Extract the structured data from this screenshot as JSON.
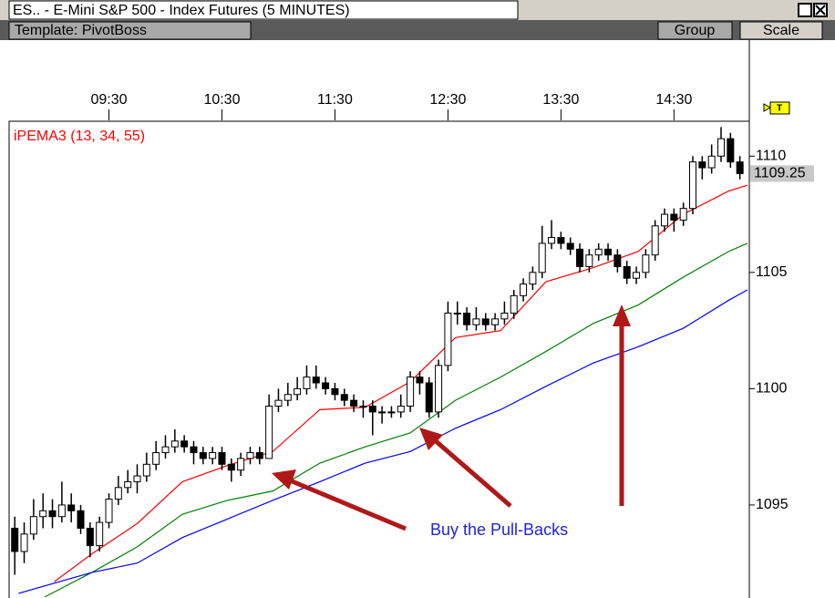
{
  "window": {
    "title": "ES.. - E-Mini S&P 500 - Index Futures (5 MINUTES)",
    "template": "Template: PivotBoss",
    "buttons": [
      "Group",
      "Scale"
    ]
  },
  "chart_data": {
    "type": "candlestick",
    "indicator_label": "iPEMA3 (13, 34, 55)",
    "annotation": "Buy the Pull-Backs",
    "tag": "T",
    "last_price": 1109.25,
    "up_color": "#ffffff",
    "down_color": "#000000",
    "x": [
      520,
      525,
      530,
      535,
      540,
      545,
      550,
      555,
      560,
      565,
      570,
      575,
      580,
      585,
      590,
      595,
      600,
      605,
      610,
      615,
      620,
      625,
      630,
      635,
      640,
      645,
      650,
      655,
      660,
      665,
      670,
      675,
      680,
      685,
      690,
      695,
      700,
      705,
      710,
      715,
      720,
      725,
      730,
      735,
      740,
      745,
      750,
      755,
      760,
      765,
      770,
      775,
      780,
      785,
      790,
      795,
      800,
      805,
      810,
      815,
      820,
      825,
      830,
      835,
      840,
      845,
      850,
      855,
      860,
      865,
      870,
      875,
      880,
      885,
      890,
      895,
      900,
      905
    ],
    "open": [
      1094.0,
      1093.0,
      1093.75,
      1094.5,
      1094.75,
      1094.5,
      1095.0,
      1094.75,
      1094.0,
      1093.25,
      1094.25,
      1095.25,
      1095.75,
      1096.0,
      1096.25,
      1096.75,
      1097.25,
      1097.5,
      1097.75,
      1097.5,
      1097.25,
      1097.0,
      1097.25,
      1096.75,
      1096.5,
      1097.0,
      1097.25,
      1097.0,
      1099.25,
      1099.5,
      1099.75,
      1100.0,
      1100.5,
      1100.25,
      1100.0,
      1099.75,
      1099.5,
      1099.25,
      1099.25,
      1099.0,
      1099.0,
      1099.0,
      1099.25,
      1100.5,
      1100.25,
      1099.0,
      1101.0,
      1103.25,
      1103.25,
      1102.75,
      1103.0,
      1102.75,
      1103.0,
      1103.25,
      1104.0,
      1104.5,
      1105.0,
      1106.25,
      1106.5,
      1106.25,
      1106.0,
      1105.25,
      1105.75,
      1106.0,
      1105.75,
      1105.25,
      1104.75,
      1105.0,
      1105.75,
      1107.0,
      1107.5,
      1107.25,
      1107.75,
      1109.75,
      1109.5,
      1110.0,
      1110.75,
      1109.75
    ],
    "high": [
      1094.5,
      1094.25,
      1095.25,
      1095.5,
      1095.25,
      1096.0,
      1095.5,
      1095.0,
      1094.25,
      1094.5,
      1095.5,
      1096.25,
      1096.5,
      1096.75,
      1097.25,
      1097.75,
      1098.0,
      1098.25,
      1098.0,
      1097.75,
      1097.5,
      1097.5,
      1097.5,
      1097.0,
      1097.25,
      1097.5,
      1097.5,
      1099.75,
      1100.0,
      1100.25,
      1100.5,
      1101.0,
      1101.0,
      1100.5,
      1100.25,
      1100.0,
      1099.75,
      1099.5,
      1099.5,
      1099.25,
      1099.25,
      1099.75,
      1100.75,
      1100.75,
      1100.5,
      1101.25,
      1103.75,
      1103.75,
      1103.5,
      1103.5,
      1103.25,
      1103.25,
      1103.75,
      1104.25,
      1104.75,
      1105.25,
      1107.0,
      1107.25,
      1106.75,
      1106.5,
      1106.25,
      1106.0,
      1106.25,
      1106.25,
      1106.0,
      1105.5,
      1105.25,
      1106.0,
      1107.25,
      1107.75,
      1107.75,
      1108.0,
      1110.0,
      1110.0,
      1110.5,
      1111.25,
      1111.0,
      1110.0
    ],
    "low": [
      1092.0,
      1092.5,
      1093.5,
      1094.0,
      1094.0,
      1094.25,
      1094.25,
      1093.75,
      1092.75,
      1093.0,
      1094.0,
      1095.0,
      1095.5,
      1095.5,
      1096.0,
      1096.5,
      1097.0,
      1097.25,
      1097.25,
      1096.75,
      1096.75,
      1096.75,
      1096.5,
      1096.0,
      1096.25,
      1096.75,
      1096.75,
      1097.0,
      1099.0,
      1099.25,
      1099.5,
      1099.75,
      1100.0,
      1099.75,
      1099.5,
      1099.25,
      1099.0,
      1098.75,
      1098.0,
      1098.5,
      1098.75,
      1098.75,
      1099.0,
      1099.75,
      1098.75,
      1098.75,
      1100.75,
      1102.75,
      1102.5,
      1102.5,
      1102.5,
      1102.5,
      1102.75,
      1103.0,
      1103.75,
      1104.25,
      1104.75,
      1106.0,
      1106.0,
      1105.75,
      1105.0,
      1105.0,
      1105.5,
      1105.5,
      1105.0,
      1104.5,
      1104.5,
      1104.75,
      1105.5,
      1106.75,
      1106.75,
      1107.0,
      1107.5,
      1109.0,
      1109.25,
      1109.75,
      1109.5,
      1109.0
    ],
    "close": [
      1093.0,
      1093.75,
      1094.5,
      1094.75,
      1094.5,
      1095.0,
      1094.75,
      1094.0,
      1093.25,
      1094.25,
      1095.25,
      1095.75,
      1096.0,
      1096.25,
      1096.75,
      1097.25,
      1097.5,
      1097.75,
      1097.5,
      1097.25,
      1097.0,
      1097.25,
      1096.75,
      1096.5,
      1097.0,
      1097.25,
      1097.0,
      1099.25,
      1099.5,
      1099.75,
      1100.0,
      1100.5,
      1100.25,
      1100.0,
      1099.75,
      1099.5,
      1099.25,
      1099.25,
      1099.0,
      1099.0,
      1099.0,
      1099.25,
      1100.5,
      1100.25,
      1099.0,
      1101.0,
      1103.25,
      1103.25,
      1102.75,
      1103.0,
      1102.75,
      1103.0,
      1103.25,
      1104.0,
      1104.5,
      1105.0,
      1106.25,
      1106.5,
      1106.25,
      1106.0,
      1105.25,
      1105.75,
      1106.0,
      1105.75,
      1105.25,
      1104.75,
      1105.0,
      1105.75,
      1107.0,
      1107.5,
      1107.25,
      1107.75,
      1109.75,
      1109.5,
      1110.0,
      1110.75,
      1109.75,
      1109.25
    ],
    "lines": [
      {
        "color": "#ff0000",
        "x": [
          541,
          561,
          585,
          609,
          633,
          657,
          682,
          706,
          730,
          754,
          778,
          802,
          827,
          851,
          875,
          899,
          909
        ],
        "values": [
          1091.7,
          1092.9,
          1094.2,
          1096.0,
          1096.7,
          1097.3,
          1099.1,
          1099.2,
          1100.3,
          1102.2,
          1102.5,
          1104.6,
          1105.2,
          1105.9,
          1107.5,
          1108.5,
          1108.75
        ]
      },
      {
        "color": "#008000",
        "x": [
          536,
          561,
          585,
          609,
          633,
          657,
          682,
          706,
          730,
          754,
          778,
          802,
          827,
          851,
          875,
          899,
          909
        ],
        "values": [
          1091.05,
          1092.1,
          1093.2,
          1094.6,
          1095.2,
          1095.6,
          1096.8,
          1097.5,
          1098.1,
          1099.5,
          1100.5,
          1101.6,
          1102.8,
          1103.6,
          1104.8,
          1105.9,
          1106.25
        ]
      },
      {
        "color": "#0000ff",
        "x": [
          522,
          561,
          585,
          609,
          633,
          657,
          682,
          706,
          730,
          754,
          778,
          802,
          827,
          851,
          875,
          899,
          909
        ],
        "values": [
          1091.2,
          1092.1,
          1092.5,
          1093.6,
          1094.4,
          1095.2,
          1096.0,
          1096.8,
          1097.3,
          1098.3,
          1099.1,
          1100.1,
          1101.1,
          1101.8,
          1102.6,
          1103.8,
          1104.25
        ]
      }
    ],
    "xlim": [
      517,
      910
    ],
    "xticks": [
      {
        "value": 570,
        "label": "09:30"
      },
      {
        "value": 630,
        "label": "10:30"
      },
      {
        "value": 690,
        "label": "11:30"
      },
      {
        "value": 750,
        "label": "12:30"
      },
      {
        "value": 810,
        "label": "13:30"
      },
      {
        "value": 870,
        "label": "14:30"
      }
    ],
    "ylim": [
      1091,
      1111.5
    ],
    "yticks": [
      1095,
      1100,
      1105,
      1110
    ]
  }
}
